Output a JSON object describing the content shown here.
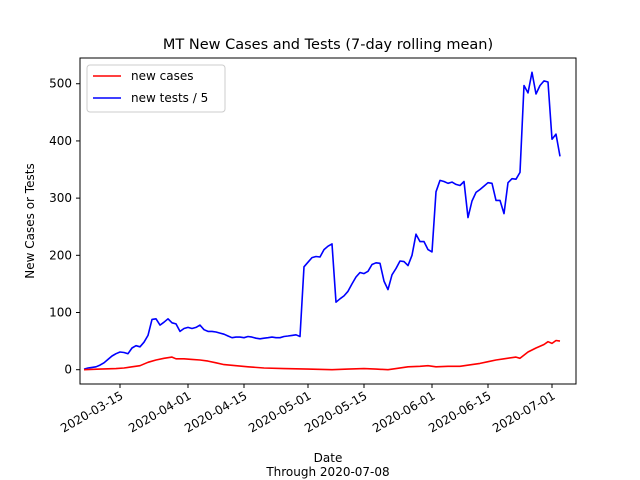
{
  "chart_data": {
    "type": "line",
    "title": "MT New Cases and Tests (7-day rolling mean)",
    "xlabel": "Date",
    "xlabel_sub": "Through 2020-07-08",
    "ylabel": "New Cases or Tests",
    "xlim": [
      "2020-03-05",
      "2020-07-07"
    ],
    "ylim": [
      -25,
      545
    ],
    "x_ticks": [
      "2020-03-15",
      "2020-04-01",
      "2020-04-15",
      "2020-05-01",
      "2020-05-15",
      "2020-06-01",
      "2020-06-15",
      "2020-07-01"
    ],
    "y_ticks": [
      0,
      100,
      200,
      300,
      400,
      500
    ],
    "grid": false,
    "legend_position": "upper left",
    "series": [
      {
        "name": "new tests / 5",
        "color": "#0000ff",
        "points": [
          [
            "2020-03-06",
            1
          ],
          [
            "2020-03-07",
            3
          ],
          [
            "2020-03-08",
            4
          ],
          [
            "2020-03-09",
            5
          ],
          [
            "2020-03-10",
            8
          ],
          [
            "2020-03-11",
            12
          ],
          [
            "2020-03-12",
            18
          ],
          [
            "2020-03-13",
            24
          ],
          [
            "2020-03-14",
            28
          ],
          [
            "2020-03-15",
            31
          ],
          [
            "2020-03-16",
            30
          ],
          [
            "2020-03-17",
            28
          ],
          [
            "2020-03-18",
            38
          ],
          [
            "2020-03-19",
            42
          ],
          [
            "2020-03-20",
            40
          ],
          [
            "2020-03-21",
            48
          ],
          [
            "2020-03-22",
            60
          ],
          [
            "2020-03-23",
            88
          ],
          [
            "2020-03-24",
            89
          ],
          [
            "2020-03-25",
            78
          ],
          [
            "2020-03-26",
            83
          ],
          [
            "2020-03-27",
            89
          ],
          [
            "2020-03-28",
            82
          ],
          [
            "2020-03-29",
            80
          ],
          [
            "2020-03-30",
            67
          ],
          [
            "2020-03-31",
            72
          ],
          [
            "2020-04-01",
            74
          ],
          [
            "2020-04-02",
            72
          ],
          [
            "2020-04-03",
            74
          ],
          [
            "2020-04-04",
            78
          ],
          [
            "2020-04-05",
            70
          ],
          [
            "2020-04-06",
            67
          ],
          [
            "2020-04-07",
            67
          ],
          [
            "2020-04-08",
            66
          ],
          [
            "2020-04-09",
            64
          ],
          [
            "2020-04-10",
            62
          ],
          [
            "2020-04-11",
            59
          ],
          [
            "2020-04-12",
            56
          ],
          [
            "2020-04-13",
            57
          ],
          [
            "2020-04-14",
            57
          ],
          [
            "2020-04-15",
            56
          ],
          [
            "2020-04-16",
            58
          ],
          [
            "2020-04-17",
            57
          ],
          [
            "2020-04-18",
            55
          ],
          [
            "2020-04-19",
            54
          ],
          [
            "2020-04-20",
            55
          ],
          [
            "2020-04-21",
            56
          ],
          [
            "2020-04-22",
            57
          ],
          [
            "2020-04-23",
            56
          ],
          [
            "2020-04-24",
            56
          ],
          [
            "2020-04-25",
            58
          ],
          [
            "2020-04-26",
            59
          ],
          [
            "2020-04-27",
            60
          ],
          [
            "2020-04-28",
            61
          ],
          [
            "2020-04-29",
            58
          ],
          [
            "2020-04-30",
            180
          ],
          [
            "2020-05-01",
            188
          ],
          [
            "2020-05-02",
            196
          ],
          [
            "2020-05-03",
            198
          ],
          [
            "2020-05-04",
            197
          ],
          [
            "2020-05-05",
            210
          ],
          [
            "2020-05-06",
            216
          ],
          [
            "2020-05-07",
            220
          ],
          [
            "2020-05-08",
            118
          ],
          [
            "2020-05-09",
            124
          ],
          [
            "2020-05-10",
            129
          ],
          [
            "2020-05-11",
            137
          ],
          [
            "2020-05-12",
            150
          ],
          [
            "2020-05-13",
            162
          ],
          [
            "2020-05-14",
            170
          ],
          [
            "2020-05-15",
            168
          ],
          [
            "2020-05-16",
            172
          ],
          [
            "2020-05-17",
            184
          ],
          [
            "2020-05-18",
            187
          ],
          [
            "2020-05-19",
            186
          ],
          [
            "2020-05-20",
            155
          ],
          [
            "2020-05-21",
            140
          ],
          [
            "2020-05-22",
            166
          ],
          [
            "2020-05-23",
            177
          ],
          [
            "2020-05-24",
            190
          ],
          [
            "2020-05-25",
            189
          ],
          [
            "2020-05-26",
            182
          ],
          [
            "2020-05-27",
            200
          ],
          [
            "2020-05-28",
            237
          ],
          [
            "2020-05-29",
            224
          ],
          [
            "2020-05-30",
            224
          ],
          [
            "2020-05-31",
            210
          ],
          [
            "2020-06-01",
            206
          ],
          [
            "2020-06-02",
            311
          ],
          [
            "2020-06-03",
            331
          ],
          [
            "2020-06-04",
            329
          ],
          [
            "2020-06-05",
            326
          ],
          [
            "2020-06-06",
            328
          ],
          [
            "2020-06-07",
            324
          ],
          [
            "2020-06-08",
            322
          ],
          [
            "2020-06-09",
            329
          ],
          [
            "2020-06-10",
            266
          ],
          [
            "2020-06-11",
            295
          ],
          [
            "2020-06-12",
            310
          ],
          [
            "2020-06-13",
            315
          ],
          [
            "2020-06-14",
            321
          ],
          [
            "2020-06-15",
            327
          ],
          [
            "2020-06-16",
            326
          ],
          [
            "2020-06-17",
            296
          ],
          [
            "2020-06-18",
            296
          ],
          [
            "2020-06-19",
            273
          ],
          [
            "2020-06-20",
            327
          ],
          [
            "2020-06-21",
            334
          ],
          [
            "2020-06-22",
            333
          ],
          [
            "2020-06-23",
            345
          ],
          [
            "2020-06-24",
            497
          ],
          [
            "2020-06-25",
            484
          ],
          [
            "2020-06-26",
            520
          ],
          [
            "2020-06-27",
            482
          ],
          [
            "2020-06-28",
            497
          ],
          [
            "2020-06-29",
            505
          ],
          [
            "2020-06-30",
            503
          ],
          [
            "2020-07-01",
            403
          ],
          [
            "2020-07-02",
            412
          ],
          [
            "2020-07-03",
            373
          ]
        ]
      },
      {
        "name": "new cases",
        "color": "#ff0000",
        "points": [
          [
            "2020-03-06",
            0
          ],
          [
            "2020-03-10",
            1
          ],
          [
            "2020-03-14",
            2
          ],
          [
            "2020-03-16",
            3
          ],
          [
            "2020-03-18",
            5
          ],
          [
            "2020-03-20",
            7
          ],
          [
            "2020-03-22",
            13
          ],
          [
            "2020-03-24",
            17
          ],
          [
            "2020-03-26",
            20
          ],
          [
            "2020-03-28",
            22
          ],
          [
            "2020-03-29",
            19
          ],
          [
            "2020-03-31",
            19
          ],
          [
            "2020-04-02",
            18
          ],
          [
            "2020-04-04",
            17
          ],
          [
            "2020-04-06",
            15
          ],
          [
            "2020-04-08",
            12
          ],
          [
            "2020-04-10",
            9
          ],
          [
            "2020-04-13",
            7
          ],
          [
            "2020-04-16",
            5
          ],
          [
            "2020-04-20",
            3
          ],
          [
            "2020-04-25",
            2
          ],
          [
            "2020-05-01",
            1
          ],
          [
            "2020-05-07",
            0
          ],
          [
            "2020-05-11",
            1
          ],
          [
            "2020-05-15",
            2
          ],
          [
            "2020-05-18",
            1
          ],
          [
            "2020-05-21",
            0
          ],
          [
            "2020-05-23",
            2
          ],
          [
            "2020-05-26",
            5
          ],
          [
            "2020-05-29",
            6
          ],
          [
            "2020-05-31",
            7
          ],
          [
            "2020-06-02",
            5
          ],
          [
            "2020-06-05",
            6
          ],
          [
            "2020-06-08",
            6
          ],
          [
            "2020-06-11",
            9
          ],
          [
            "2020-06-13",
            11
          ],
          [
            "2020-06-15",
            14
          ],
          [
            "2020-06-17",
            17
          ],
          [
            "2020-06-19",
            19
          ],
          [
            "2020-06-22",
            22
          ],
          [
            "2020-06-23",
            20
          ],
          [
            "2020-06-25",
            31
          ],
          [
            "2020-06-27",
            38
          ],
          [
            "2020-06-29",
            44
          ],
          [
            "2020-06-30",
            49
          ],
          [
            "2020-07-01",
            46
          ],
          [
            "2020-07-02",
            51
          ],
          [
            "2020-07-03",
            50
          ]
        ]
      }
    ],
    "legend": [
      {
        "label": "new cases",
        "color": "#ff0000"
      },
      {
        "label": "new tests / 5",
        "color": "#0000ff"
      }
    ]
  }
}
